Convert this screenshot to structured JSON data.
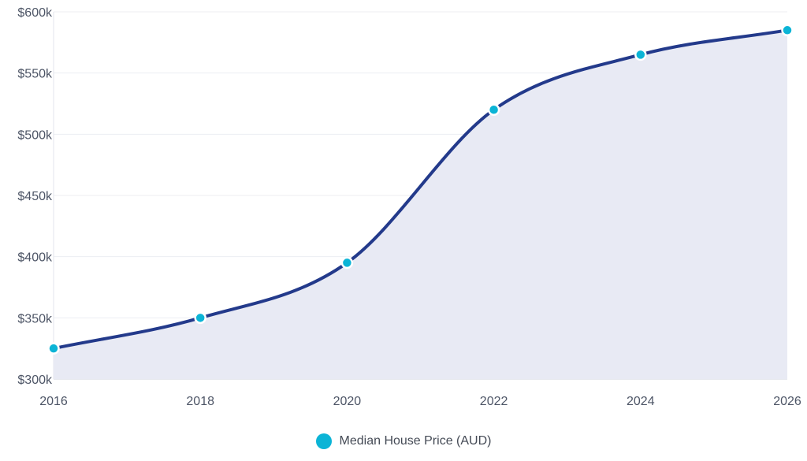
{
  "chart_data": {
    "type": "area",
    "title": "",
    "xlabel": "",
    "ylabel": "",
    "x": [
      2016,
      2018,
      2020,
      2022,
      2024,
      2026
    ],
    "xticks": [
      "2016",
      "2018",
      "2020",
      "2022",
      "2024",
      "2026"
    ],
    "xlim": [
      2016,
      2026
    ],
    "ylim": [
      300000,
      600000
    ],
    "yticks": [
      300000,
      350000,
      400000,
      450000,
      500000,
      550000,
      600000
    ],
    "ytick_labels": [
      "$300k",
      "$350k",
      "$400k",
      "$450k",
      "$500k",
      "$550k",
      "$600k"
    ],
    "grid": true,
    "legend_position": "bottom-center",
    "series": [
      {
        "name": "Median House Price (AUD)",
        "values": [
          325000,
          350000,
          395000,
          520000,
          565000,
          585000
        ],
        "line_color": "#233a8b",
        "marker_color": "#0bb4d6",
        "fill_color": "#e8eaf4"
      }
    ]
  }
}
